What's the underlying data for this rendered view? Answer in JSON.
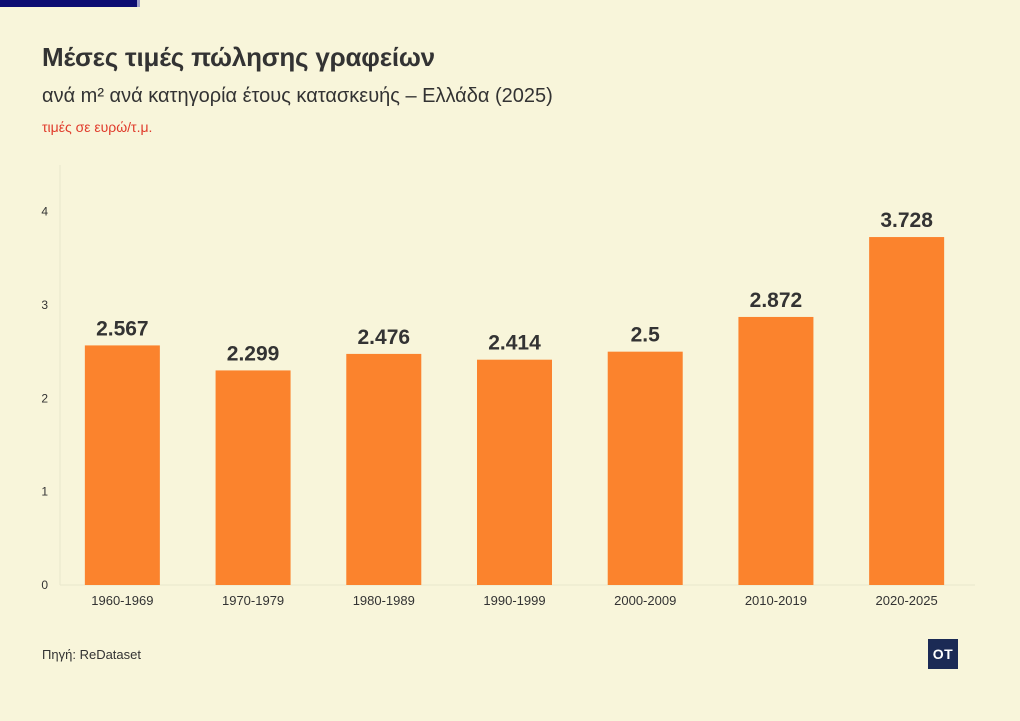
{
  "header": {
    "title": "Μέσες τιμές πώλησης γραφείων",
    "subtitle": "ανά m² ανά κατηγορία έτους κατασκευής – Ελλάδα (2025)",
    "unit_note": "τιμές σε ευρώ/τ.μ."
  },
  "footer": {
    "source": "Πηγή: ReDataset",
    "logo_text": "OT"
  },
  "colors": {
    "bar": "#fb832d",
    "title": "#333333",
    "unit_note": "#e03a2a",
    "background": "#f8f5da",
    "logo_bg": "#1b2a55"
  },
  "chart_data": {
    "type": "bar",
    "title": "Μέσες τιμές πώλησης γραφείων",
    "subtitle": "ανά m² ανά κατηγορία έτους κατασκευής – Ελλάδα (2025)",
    "xlabel": "",
    "ylabel": "",
    "categories": [
      "1960-1969",
      "1970-1979",
      "1980-1989",
      "1990-1999",
      "2000-2009",
      "2010-2019",
      "2020-2025"
    ],
    "values": [
      2.567,
      2.299,
      2.476,
      2.414,
      2.5,
      2.872,
      3.728
    ],
    "value_labels": [
      "2.567",
      "2.299",
      "2.476",
      "2.414",
      "2.5",
      "2.872",
      "3.728"
    ],
    "yticks": [
      0,
      1,
      2,
      3,
      4
    ],
    "ylim": [
      0,
      4.5
    ],
    "grid": false,
    "legend": "none"
  }
}
